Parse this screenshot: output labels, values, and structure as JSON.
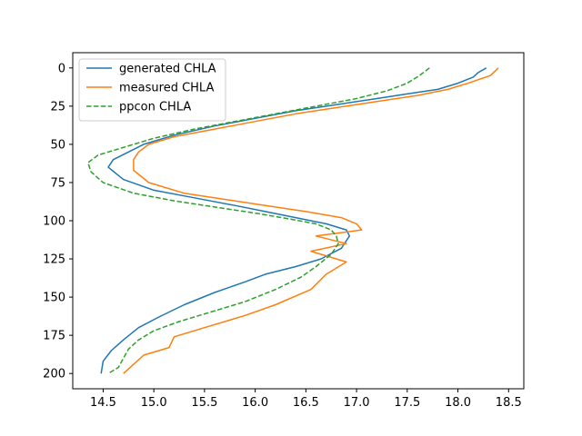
{
  "chart_data": {
    "type": "line",
    "title": "",
    "xlabel": "",
    "ylabel": "",
    "xlim": [
      14.2,
      18.65
    ],
    "ylim": [
      210,
      -10
    ],
    "y_inverted": true,
    "grid": false,
    "legend_position": "top-left",
    "xticks": [
      14.5,
      15.0,
      15.5,
      16.0,
      16.5,
      17.0,
      17.5,
      18.0,
      18.5
    ],
    "xtick_labels": [
      "14.5",
      "15.0",
      "15.5",
      "16.0",
      "16.5",
      "17.0",
      "17.5",
      "18.0",
      "18.5"
    ],
    "yticks": [
      0,
      25,
      50,
      75,
      100,
      125,
      150,
      175,
      200
    ],
    "ytick_labels": [
      "0",
      "25",
      "50",
      "75",
      "100",
      "125",
      "150",
      "175",
      "200"
    ],
    "series": [
      {
        "name": "generated CHLA",
        "color": "#1f77b4",
        "dash": "solid",
        "x": [
          18.28,
          18.2,
          18.15,
          18.0,
          17.8,
          17.5,
          17.2,
          16.8,
          16.4,
          16.0,
          15.6,
          15.2,
          14.9,
          14.75,
          14.6,
          14.55,
          14.7,
          15.0,
          15.4,
          15.8,
          16.1,
          16.4,
          16.7,
          16.9,
          16.93,
          16.85,
          16.65,
          16.4,
          16.1,
          15.9,
          15.6,
          15.3,
          15.05,
          14.85,
          14.7,
          14.58,
          14.5,
          14.48
        ],
        "y": [
          0,
          3,
          6,
          10,
          14,
          17,
          20,
          24,
          28,
          33,
          38,
          44,
          50,
          55,
          60,
          65,
          73,
          80,
          85,
          90,
          94,
          98,
          102,
          106,
          110,
          118,
          125,
          130,
          135,
          140,
          147,
          155,
          163,
          170,
          178,
          185,
          192,
          200
        ]
      },
      {
        "name": "measured CHLA",
        "color": "#ff7f0e",
        "dash": "solid",
        "x": [
          18.4,
          18.32,
          18.1,
          17.9,
          17.6,
          17.2,
          16.8,
          16.4,
          16.0,
          15.6,
          15.2,
          14.95,
          14.85,
          14.8,
          14.8,
          14.95,
          15.3,
          15.7,
          16.1,
          16.5,
          16.85,
          17.0,
          17.05,
          16.6,
          16.9,
          16.55,
          16.9,
          16.7,
          16.55,
          16.2,
          15.9,
          15.5,
          15.2,
          15.15,
          14.9,
          14.8,
          14.7
        ],
        "y": [
          0,
          5,
          10,
          14,
          18,
          22,
          26,
          30,
          35,
          40,
          45,
          50,
          55,
          60,
          67,
          75,
          82,
          86,
          90,
          94,
          98,
          102,
          106,
          110,
          115,
          120,
          127,
          135,
          145,
          155,
          162,
          170,
          176,
          183,
          188,
          194,
          200
        ]
      },
      {
        "name": "ppcon CHLA",
        "color": "#2ca02c",
        "dash": "dashed",
        "x": [
          17.72,
          17.62,
          17.5,
          17.3,
          17.0,
          16.6,
          16.2,
          15.8,
          15.4,
          15.0,
          14.7,
          14.45,
          14.35,
          14.38,
          14.5,
          14.8,
          15.2,
          15.6,
          16.0,
          16.35,
          16.6,
          16.75,
          16.8,
          16.82,
          16.75,
          16.6,
          16.45,
          16.2,
          15.9,
          15.55,
          15.25,
          15.0,
          14.85,
          14.75,
          14.7,
          14.65,
          14.55
        ],
        "y": [
          0,
          5,
          10,
          15,
          20,
          25,
          30,
          35,
          40,
          46,
          52,
          57,
          62,
          68,
          75,
          82,
          87,
          91,
          95,
          99,
          102,
          106,
          110,
          115,
          122,
          130,
          137,
          145,
          153,
          160,
          166,
          172,
          178,
          184,
          190,
          196,
          200
        ]
      }
    ]
  }
}
